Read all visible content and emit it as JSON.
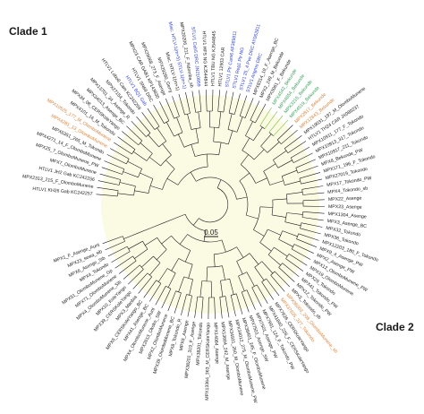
{
  "figure": {
    "clade1_label": "Clade 1",
    "clade2_label": "Clade 2",
    "scale_bar": "0.05"
  },
  "colors": {
    "plain": "#1a1a1a",
    "orange": "#d9823a",
    "blue": "#2a3fd1",
    "green": "#3aa15c",
    "branch_green": "#7cbf3a",
    "center_fill": "#fbfbe4",
    "branch": "#1a1a1a"
  },
  "leaves": [
    {
      "label": "HTLV1 KH26 Gab KC242257",
      "color": "plain"
    },
    {
      "label": "MPX2313_215_F_OlomboMunene",
      "color": "plain"
    },
    {
      "label": "HTLV1 JH2 Gab KC242256",
      "color": "plain"
    },
    {
      "label": "MPX7_OlomboMunene",
      "color": "plain"
    },
    {
      "label": "MPX25_7_OlomboMunene_PW",
      "color": "plain"
    },
    {
      "label": "MPX4271_14_F_OlomboMunene",
      "color": "plain"
    },
    {
      "label": "MPX6351_265_M_Tokondo",
      "color": "plain"
    },
    {
      "label": "MPX4281_13_OlomboMunene",
      "color": "orange"
    },
    {
      "label": "MPX10525_177_M_OlomboMunene",
      "color": "orange"
    },
    {
      "label": "MPX4101_16_M_Tokondo",
      "color": "plain"
    },
    {
      "label": "MPX34_08_CERSKoleYango",
      "color": "plain"
    },
    {
      "label": "MPX34013_Asenge_BC",
      "color": "plain"
    },
    {
      "label": "MPX13701_34_Asenge_R",
      "color": "plain"
    },
    {
      "label": "MPX27154_Tokondo",
      "color": "plain"
    },
    {
      "label": "HTLV1 Lobo8 Cam KC242259",
      "color": "plain"
    },
    {
      "label": "HTLV1 BQ1 Gab",
      "color": "blue"
    },
    {
      "label": "HTLV1 SN69 DRC",
      "color": "plain"
    },
    {
      "label": "MPX23 CAR GAB1 KP143830",
      "color": "plain"
    },
    {
      "label": "MPX29068_273_F_Asenge",
      "color": "plain"
    },
    {
      "label": "MPX29290_Gerry",
      "color": "plain"
    },
    {
      "label": "Misc. HTLV-1(m+1)",
      "color": "plain"
    },
    {
      "label": "Misc. HTLV-1(m+5) STLV-1(m+1)",
      "color": "blue"
    },
    {
      "label": "MPX20206_211_F_Ndomba_sb",
      "color": "plain"
    },
    {
      "label": "STLV1 Ceb5 DRC JN210959",
      "color": "blue"
    },
    {
      "label": "HTLV1 HFS NG KJ544844",
      "color": "plain"
    },
    {
      "label": "HTLV1 TBU NG KJ544845",
      "color": "plain"
    },
    {
      "label": "HTLV1 12903 CAR",
      "color": "plain"
    },
    {
      "label": "STLV1 Ptr Cam6 AF389811",
      "color": "blue"
    },
    {
      "label": "STLV1 Reg1 Ptr NG",
      "color": "blue"
    },
    {
      "label": "STLV1 25_4 Pve DRC AY062811",
      "color": "blue"
    },
    {
      "label": "STLV1 Angmo DRC",
      "color": "blue"
    },
    {
      "label": "MPX8314_19_F_Asenge_BC",
      "color": "plain"
    },
    {
      "label": "MPX2_249_M_Bekunde",
      "color": "plain"
    },
    {
      "label": "MPX3061_F_Bekunde",
      "color": "plain"
    },
    {
      "label": "MPX4542_Bekunde",
      "color": "green"
    },
    {
      "label": "MPX4854_Bekunde",
      "color": "green"
    },
    {
      "label": "MPX3215_Bekunde",
      "color": "green"
    },
    {
      "label": "MPX4519_Bekunde",
      "color": "green"
    },
    {
      "label": "MPX2817_Bekunde",
      "color": "orange"
    },
    {
      "label": "MPX12843_Bekunde",
      "color": "orange"
    },
    {
      "label": "MPX19031_197_M_OlomboMunene",
      "color": "plain"
    },
    {
      "label": "HTLV1 TH24 CAR JX080237",
      "color": "plain"
    },
    {
      "label": "MPX10911_177_F_Tokondo",
      "color": "plain"
    },
    {
      "label": "MPX10913_317_Tokondo",
      "color": "plain"
    },
    {
      "label": "MPX10917_211_Tokondo",
      "color": "plain"
    },
    {
      "label": "MPX8_Bekunde_PW",
      "color": "plain"
    },
    {
      "label": "MPX171_196_F_Tokondo",
      "color": "plain"
    },
    {
      "label": "MPX27019_Tokondo",
      "color": "plain"
    },
    {
      "label": "MPX17_Tokondo_PW",
      "color": "plain"
    },
    {
      "label": "MPX4_Tokondo_sb",
      "color": "plain"
    },
    {
      "label": "MPX22_Asenge",
      "color": "plain"
    },
    {
      "label": "MPX23_Asenge",
      "color": "plain"
    },
    {
      "label": "MPX1304_Asenge",
      "color": "plain"
    },
    {
      "label": "MPX3_Asenge_BC",
      "color": "plain"
    },
    {
      "label": "MPX32_Tokondo",
      "color": "plain"
    },
    {
      "label": "MPX36_Tokondo",
      "color": "plain"
    },
    {
      "label": "MPX12203_180_F_Tokondo",
      "color": "plain"
    },
    {
      "label": "MPX9_4_Asenge_PW",
      "color": "plain"
    },
    {
      "label": "MPX2_Asenge_PW",
      "color": "plain"
    },
    {
      "label": "MPX12_OlomboMunene_PW",
      "color": "plain"
    },
    {
      "label": "MPX19_OlomboMunene",
      "color": "plain"
    },
    {
      "label": "MPX29_Tokondo",
      "color": "plain"
    },
    {
      "label": "MPX41_Tokondo_PW",
      "color": "plain"
    },
    {
      "label": "MPX12_Tokondo_PW",
      "color": "plain"
    },
    {
      "label": "MPX3_Tokondo_sb",
      "color": "plain"
    },
    {
      "label": "MPX36003_208_OlomboMunene_sb",
      "color": "orange"
    },
    {
      "label": "MPX37635_327_Tokondo",
      "color": "orange"
    },
    {
      "label": "MPX7626_CERSKoleYango",
      "color": "plain"
    },
    {
      "label": "MPX41840_228_F_CERSKoleYango",
      "color": "plain"
    },
    {
      "label": "MPX7991_124_F_Tokondo_PW",
      "color": "plain"
    },
    {
      "label": "MPX7501_Asenge_PW",
      "color": "plain"
    },
    {
      "label": "MPX7501_Asenge_SW",
      "color": "plain"
    },
    {
      "label": "MPX38401_245_F_OlomboMunene",
      "color": "plain"
    },
    {
      "label": "MPX34012_275_M_OlomboMunene_PW",
      "color": "plain"
    },
    {
      "label": "MPX34931_260_M_OlomboMunene",
      "color": "plain"
    },
    {
      "label": "MPX13684_242_M_Asenge",
      "color": "plain"
    },
    {
      "label": "MPX14084_Asenge",
      "color": "plain"
    },
    {
      "label": "MPX13364_363_M_CERSKoleYango",
      "color": "plain"
    },
    {
      "label": "MPX38201_Tokondo",
      "color": "plain"
    },
    {
      "label": "MPX38201_319_F_Asenge",
      "color": "plain"
    },
    {
      "label": "MPX8_Asenge",
      "color": "plain"
    },
    {
      "label": "MPX8_Tokondo_R",
      "color": "plain"
    },
    {
      "label": "MPX39_OlomboMunene_BC",
      "color": "plain"
    },
    {
      "label": "MPX2_OlomboMunene",
      "color": "plain"
    },
    {
      "label": "MPX2613_Okoko_SW",
      "color": "plain"
    },
    {
      "label": "MPX4_OlomboMunene_Aunt",
      "color": "plain"
    },
    {
      "label": "MPX41_Asenge_BC",
      "color": "plain"
    },
    {
      "label": "MPX6_CERSKoleYango_BC",
      "color": "plain"
    },
    {
      "label": "MPX3_Manbia",
      "color": "plain"
    },
    {
      "label": "MPX39_CERSKoleYango",
      "color": "plain"
    },
    {
      "label": "MPX10_KoleYango",
      "color": "plain"
    },
    {
      "label": "MPX4_OlomboMunene_Sib",
      "color": "plain"
    },
    {
      "label": "MPX71_OlomboMunene",
      "color": "plain"
    },
    {
      "label": "MPX51_OlomboMunene_Gp",
      "color": "plain"
    },
    {
      "label": "MPX4_Tokondo",
      "color": "plain"
    },
    {
      "label": "MPX6_Asenge_Sib",
      "color": "plain"
    },
    {
      "label": "MPX23_sewa_sib",
      "color": "plain"
    },
    {
      "label": "MPX1_F_Asenge_Aunt",
      "color": "plain"
    }
  ]
}
